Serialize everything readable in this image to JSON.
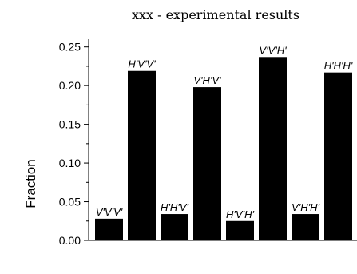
{
  "chart_data": {
    "type": "bar",
    "title": "xxx - experimental results",
    "xlabel": "",
    "ylabel": "Fraction",
    "ylim": [
      0,
      0.26
    ],
    "yticks": [
      "0.00",
      "0.05",
      "0.10",
      "0.15",
      "0.20",
      "0.25"
    ],
    "categories": [
      "V'V'V'",
      "H'V'V'",
      "H'H'V'",
      "V'H'V'",
      "H'V'H'",
      "V'V'H'",
      "V'H'H'",
      "H'H'H'"
    ],
    "values": [
      0.028,
      0.219,
      0.034,
      0.198,
      0.025,
      0.237,
      0.034,
      0.217
    ],
    "grid": false,
    "bar_color": "#000000"
  }
}
